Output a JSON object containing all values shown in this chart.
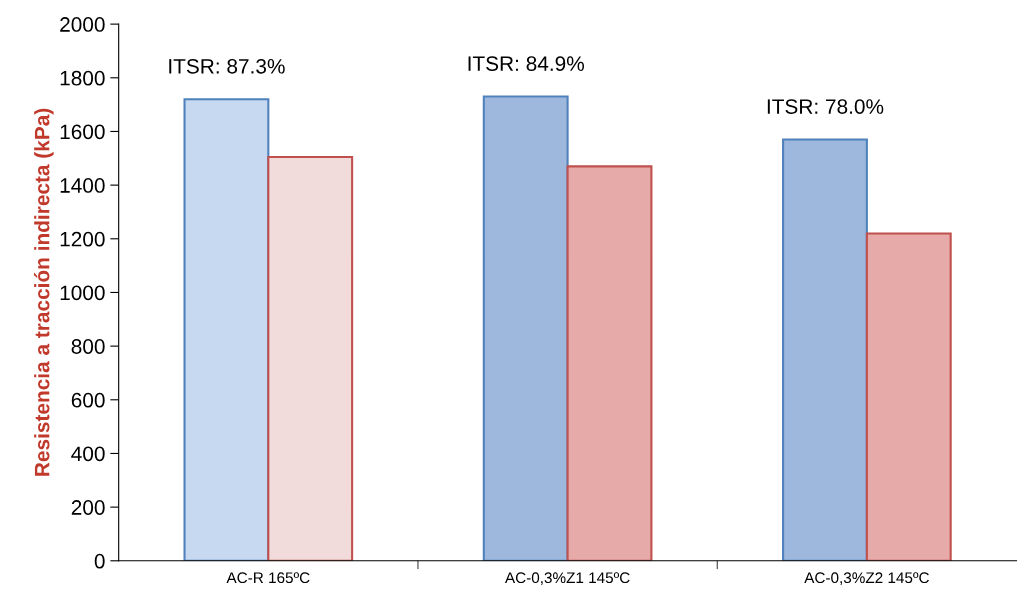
{
  "chart_data": {
    "type": "bar",
    "ylabel": "Resistencia a tracción indirecta (kPa)",
    "categories": [
      "AC-R 165ºC",
      "AC-0,3%Z1 145ºC",
      "AC-0,3%Z2 145ºC"
    ],
    "series": [
      {
        "color": "#4f81bd",
        "colors": [
          "#c6d9f0",
          "#9db8dc",
          "#9db8dc"
        ],
        "values": [
          1720,
          1730,
          1570
        ]
      },
      {
        "color": "#c0504d",
        "colors": [
          "#f2dcdb",
          "#e6aaa8",
          "#e6aaa8"
        ],
        "values": [
          1505,
          1470,
          1220
        ]
      }
    ],
    "ylim": [
      0,
      2000
    ],
    "yticks": [
      0,
      200,
      400,
      600,
      800,
      1000,
      1200,
      1400,
      1600,
      1800,
      2000
    ],
    "grid": false,
    "annotations": [
      "ITSR: 87.3%",
      "ITSR: 84.9%",
      "ITSR: 78.0%"
    ]
  }
}
